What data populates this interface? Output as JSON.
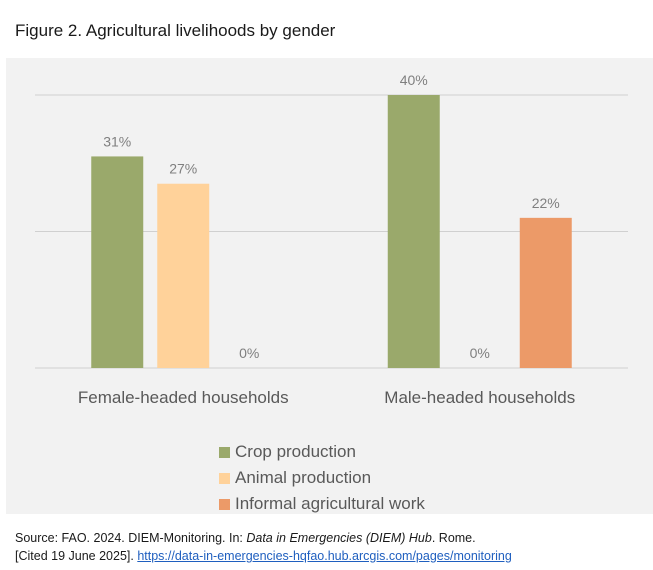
{
  "figure": {
    "title": "Figure 2. Agricultural livelihoods by gender"
  },
  "chart_data": {
    "type": "bar",
    "title": "Figure 2. Agricultural livelihoods by gender",
    "categories": [
      "Female-headed households",
      "Male-headed households"
    ],
    "series": [
      {
        "name": "Crop production",
        "values": [
          31,
          40
        ],
        "labels": [
          "31%",
          "40%"
        ],
        "color": "#9aa96b"
      },
      {
        "name": "Animal production",
        "values": [
          27,
          0
        ],
        "labels": [
          "27%",
          "0%"
        ],
        "color": "#ffd29a"
      },
      {
        "name": "Informal agricultural work",
        "values": [
          0,
          22
        ],
        "labels": [
          "0%",
          "22%"
        ],
        "color": "#ec9a68"
      }
    ],
    "ylim": [
      0,
      40
    ],
    "grid": true,
    "legend_position": "bottom",
    "xlabel": "",
    "ylabel": ""
  },
  "source": {
    "prefix": "Source: FAO. 2024. DIEM-Monitoring. In: ",
    "italic": "Data in Emergencies (DIEM) Hub",
    "suffix": ". Rome.",
    "cited": "[Cited 19 June 2025]. ",
    "link": "https://data-in-emergencies-hqfao.hub.arcgis.com/pages/monitoring"
  }
}
